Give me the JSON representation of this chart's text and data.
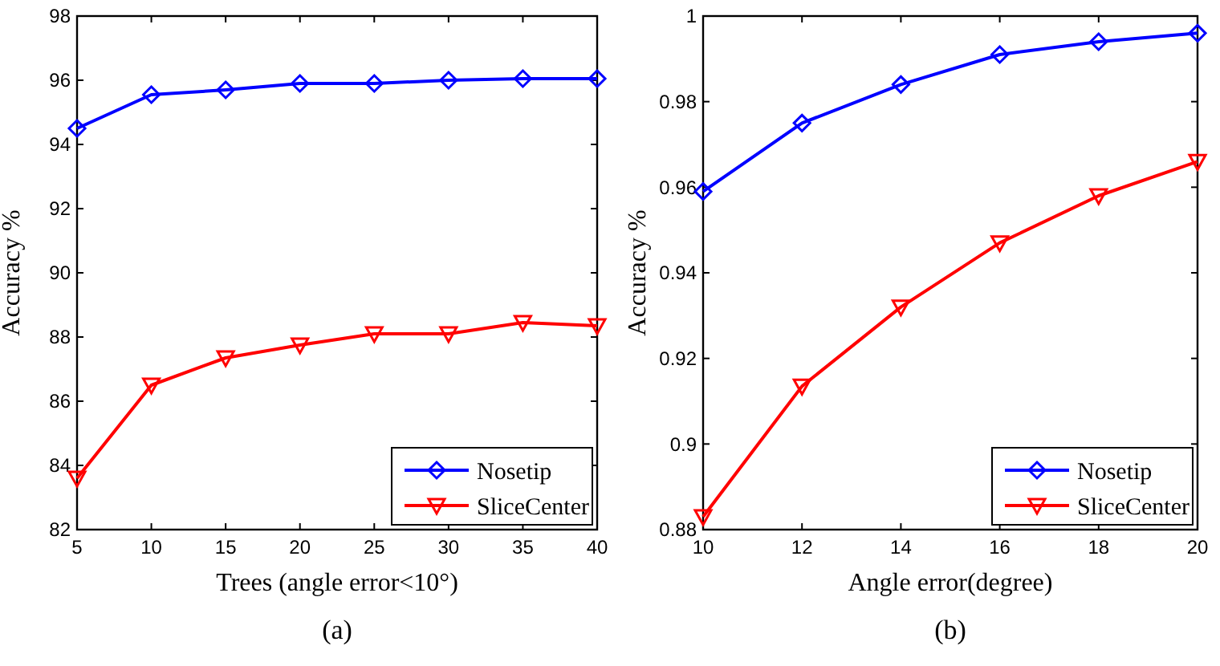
{
  "chart_data": [
    {
      "type": "line",
      "xlabel": "Trees (angle error<10°)",
      "ylabel": "Accuracy %",
      "annotations": [
        "(a)"
      ],
      "x": [
        5,
        10,
        15,
        20,
        25,
        30,
        35,
        40
      ],
      "xlim": [
        5,
        40
      ],
      "xticks": [
        5,
        10,
        15,
        20,
        25,
        30,
        35,
        40
      ],
      "ylim": [
        82,
        98
      ],
      "yticks": [
        82,
        84,
        86,
        88,
        90,
        92,
        94,
        96,
        98
      ],
      "legend": "bottom right",
      "grid": false,
      "series": [
        {
          "name": "Nosetip",
          "color": "#0000ff",
          "marker": "diamond",
          "values": [
            94.5,
            95.55,
            95.7,
            95.9,
            95.9,
            96.0,
            96.05,
            96.05
          ]
        },
        {
          "name": "SliceCenter",
          "color": "#ff0000",
          "marker": "triangle",
          "values": [
            83.6,
            86.5,
            87.35,
            87.75,
            88.1,
            88.1,
            88.45,
            88.35
          ]
        }
      ]
    },
    {
      "type": "line",
      "xlabel": "Angle error(degree)",
      "ylabel": "Accuracy %",
      "annotations": [
        "(b)"
      ],
      "x": [
        10,
        12,
        14,
        16,
        18,
        20
      ],
      "xlim": [
        10,
        20
      ],
      "xticks": [
        10,
        12,
        14,
        16,
        18,
        20
      ],
      "ylim": [
        0.88,
        1
      ],
      "yticks": [
        0.88,
        0.9,
        0.92,
        0.94,
        0.96,
        0.98,
        1
      ],
      "legend": "bottom right",
      "grid": false,
      "series": [
        {
          "name": "Nosetip",
          "color": "#0000ff",
          "marker": "diamond",
          "values": [
            0.959,
            0.975,
            0.984,
            0.991,
            0.994,
            0.996
          ]
        },
        {
          "name": "SliceCenter",
          "color": "#ff0000",
          "marker": "triangle",
          "values": [
            0.883,
            0.9135,
            0.932,
            0.947,
            0.958,
            0.966
          ]
        }
      ]
    }
  ]
}
